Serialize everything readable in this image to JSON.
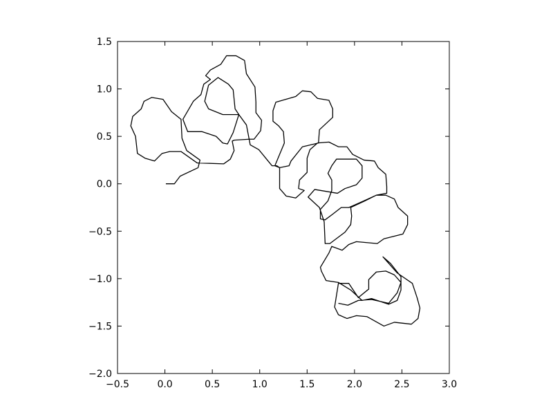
{
  "chart_data": {
    "type": "line",
    "color": "#000000",
    "xlim": [
      -0.5,
      3.0
    ],
    "ylim": [
      -2.0,
      1.5
    ],
    "xticks": [
      {
        "value": -0.5,
        "label": "−0.5"
      },
      {
        "value": 0,
        "label": "0.0"
      },
      {
        "value": 0.5,
        "label": "0.5"
      },
      {
        "value": 1,
        "label": "1.0"
      },
      {
        "value": 1.5,
        "label": "1.5"
      },
      {
        "value": 2,
        "label": "2.0"
      },
      {
        "value": 2.5,
        "label": "2.5"
      },
      {
        "value": 3,
        "label": "3.0"
      }
    ],
    "yticks": [
      {
        "value": -2,
        "label": "−2.0"
      },
      {
        "value": -1.5,
        "label": "−1.5"
      },
      {
        "value": -1,
        "label": "−1.0"
      },
      {
        "value": -0.5,
        "label": "−0.5"
      },
      {
        "value": 0,
        "label": "0.0"
      },
      {
        "value": 0.5,
        "label": "0.5"
      },
      {
        "value": 1,
        "label": "1.0"
      },
      {
        "value": 1.5,
        "label": "1.5"
      }
    ],
    "x": [
      0.01,
      0.1,
      0.16,
      0.35,
      0.37,
      0.23,
      0.18,
      0.17,
      0.07,
      -0.02,
      -0.14,
      -0.22,
      -0.25,
      -0.34,
      -0.36,
      -0.31,
      -0.29,
      -0.21,
      -0.11,
      -0.03,
      0.05,
      0.17,
      0.34,
      0.62,
      0.69,
      0.73,
      0.71,
      0.73,
      0.89,
      0.94,
      1.01,
      1.02,
      0.96,
      0.96,
      0.95,
      0.86,
      0.84,
      0.75,
      0.65,
      0.59,
      0.48,
      0.43,
      0.48,
      0.41,
      0.38,
      0.3,
      0.19,
      0.24,
      0.39,
      0.54,
      0.61,
      0.66,
      0.72,
      0.78,
      0.74,
      0.72,
      0.67,
      0.56,
      0.46,
      0.42,
      0.46,
      0.61,
      0.78,
      0.86,
      0.9,
      0.99,
      1.13,
      1.18,
      1.21,
      1.16,
      1.26,
      1.25,
      1.2,
      1.14,
      1.14,
      1.17,
      1.38,
      1.45,
      1.54,
      1.61,
      1.73,
      1.77,
      1.77,
      1.63,
      1.62,
      1.45,
      1.33,
      1.31,
      1.21,
      1.21,
      1.28,
      1.38,
      1.47,
      1.41,
      1.42,
      1.5,
      1.5,
      1.53,
      1.61,
      1.73,
      1.83,
      1.92,
      1.98,
      2.1,
      2.21,
      2.25,
      2.33,
      2.34,
      2.34,
      2.23,
      2.1,
      1.94,
      1.86,
      1.77,
      1.69,
      1.64,
      1.64,
      1.72,
      1.76,
      1.76,
      1.72,
      1.76,
      1.81,
      2.02,
      2.08,
      2.08,
      2.02,
      1.9,
      1.82,
      1.58,
      1.51,
      1.63,
      1.68,
      1.69,
      1.74,
      1.9,
      1.96,
      1.97,
      1.96,
      2.11,
      2.23,
      2.33,
      2.42,
      2.46,
      2.56,
      2.56,
      2.51,
      2.31,
      2.24,
      2.02,
      1.94,
      1.87,
      1.76,
      1.73,
      1.64,
      1.65,
      1.7,
      1.83,
      1.96,
      2.08,
      2.18,
      2.36,
      2.45,
      2.49,
      2.49,
      2.38,
      2.3,
      2.45,
      2.61,
      2.66,
      2.69,
      2.67,
      2.6,
      2.42,
      2.31,
      2.13,
      2.02,
      1.92,
      1.83,
      1.79,
      1.83,
      1.94,
      2.04,
      2.15,
      2.15,
      2.23,
      2.33,
      2.42,
      2.49,
      2.45,
      2.36,
      2.18,
      2.04,
      1.93,
      1.83
    ],
    "values": [
      0.0,
      0.0,
      0.08,
      0.17,
      0.25,
      0.35,
      0.48,
      0.68,
      0.76,
      0.89,
      0.91,
      0.87,
      0.79,
      0.71,
      0.61,
      0.5,
      0.32,
      0.27,
      0.24,
      0.32,
      0.34,
      0.34,
      0.22,
      0.21,
      0.26,
      0.35,
      0.45,
      0.46,
      0.47,
      0.47,
      0.56,
      0.67,
      0.75,
      0.86,
      1.02,
      1.16,
      1.3,
      1.35,
      1.35,
      1.26,
      1.2,
      1.14,
      1.1,
      1.05,
      0.94,
      0.87,
      0.68,
      0.55,
      0.55,
      0.5,
      0.43,
      0.42,
      0.54,
      0.73,
      0.79,
      0.99,
      1.05,
      1.12,
      1.04,
      0.87,
      0.79,
      0.73,
      0.73,
      0.62,
      0.41,
      0.36,
      0.19,
      0.19,
      0.17,
      0.19,
      0.43,
      0.55,
      0.61,
      0.66,
      0.77,
      0.86,
      0.92,
      0.98,
      0.97,
      0.9,
      0.88,
      0.79,
      0.7,
      0.57,
      0.43,
      0.39,
      0.24,
      0.19,
      0.17,
      -0.05,
      -0.13,
      -0.15,
      -0.07,
      -0.05,
      0.04,
      0.12,
      0.27,
      0.36,
      0.43,
      0.44,
      0.39,
      0.39,
      0.31,
      0.25,
      0.24,
      0.17,
      0.1,
      -0.03,
      -0.1,
      -0.12,
      -0.18,
      -0.25,
      -0.25,
      -0.32,
      -0.38,
      -0.37,
      -0.27,
      -0.18,
      -0.07,
      0.04,
      0.11,
      0.19,
      0.26,
      0.26,
      0.19,
      0.06,
      -0.01,
      -0.05,
      -0.1,
      -0.06,
      -0.14,
      -0.25,
      -0.4,
      -0.63,
      -0.63,
      -0.51,
      -0.43,
      -0.34,
      -0.25,
      -0.18,
      -0.12,
      -0.12,
      -0.16,
      -0.25,
      -0.34,
      -0.43,
      -0.53,
      -0.58,
      -0.63,
      -0.61,
      -0.64,
      -0.7,
      -0.66,
      -0.73,
      -0.88,
      -0.92,
      -1.02,
      -1.04,
      -1.12,
      -1.23,
      -1.21,
      -1.27,
      -1.23,
      -1.12,
      -0.98,
      -0.84,
      -0.77,
      -0.94,
      -1.05,
      -1.2,
      -1.31,
      -1.42,
      -1.48,
      -1.46,
      -1.5,
      -1.4,
      -1.39,
      -1.42,
      -1.38,
      -1.3,
      -1.05,
      -1.05,
      -1.2,
      -1.11,
      -1.01,
      -0.93,
      -0.92,
      -0.96,
      -1.04,
      -1.15,
      -1.26,
      -1.22,
      -1.23,
      -1.28,
      -1.26
    ]
  }
}
